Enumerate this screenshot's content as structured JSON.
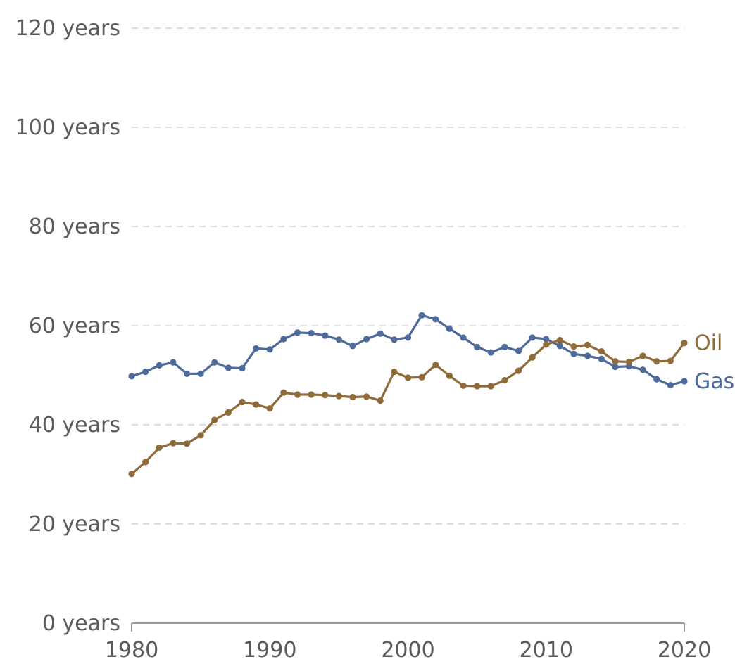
{
  "chart_data": {
    "type": "line",
    "title": "",
    "xlabel": "",
    "ylabel": "",
    "xlim": [
      1980,
      2020
    ],
    "ylim": [
      0,
      120
    ],
    "x_ticks": [
      1980,
      1990,
      2000,
      2010,
      2020
    ],
    "x_tick_labels": [
      "1980",
      "1990",
      "2000",
      "2010",
      "2020"
    ],
    "y_ticks": [
      0,
      20,
      40,
      60,
      80,
      100,
      120
    ],
    "y_tick_labels": [
      "0 years",
      "20 years",
      "40 years",
      "60 years",
      "80 years",
      "100 years",
      "120 years"
    ],
    "grid": true,
    "x": [
      1980,
      1981,
      1982,
      1983,
      1984,
      1985,
      1986,
      1987,
      1988,
      1989,
      1990,
      1991,
      1992,
      1993,
      1994,
      1995,
      1996,
      1997,
      1998,
      1999,
      2000,
      2001,
      2002,
      2003,
      2004,
      2005,
      2006,
      2007,
      2008,
      2009,
      2010,
      2011,
      2012,
      2013,
      2014,
      2015,
      2016,
      2017,
      2018,
      2019,
      2020
    ],
    "series": [
      {
        "name": "Gas",
        "color": "#4e6a9b",
        "values": [
          49.8,
          50.7,
          52.0,
          52.6,
          50.3,
          50.3,
          52.6,
          51.5,
          51.4,
          55.4,
          55.2,
          57.3,
          58.6,
          58.5,
          58.0,
          57.2,
          55.9,
          57.3,
          58.4,
          57.2,
          57.6,
          62.1,
          61.3,
          59.4,
          57.6,
          55.7,
          54.6,
          55.7,
          54.9,
          57.6,
          57.3,
          55.9,
          54.3,
          53.9,
          53.3,
          51.7,
          51.8,
          51.1,
          49.2,
          48.0,
          48.8
        ]
      },
      {
        "name": "Oil",
        "color": "#8f6b3a",
        "values": [
          30.1,
          32.5,
          35.4,
          36.3,
          36.2,
          37.9,
          41.0,
          42.5,
          44.6,
          44.1,
          43.3,
          46.5,
          46.1,
          46.1,
          46.0,
          45.8,
          45.6,
          45.7,
          44.9,
          50.7,
          49.5,
          49.6,
          52.1,
          49.9,
          47.9,
          47.8,
          47.8,
          49.0,
          50.9,
          53.6,
          56.2,
          57.1,
          55.8,
          56.1,
          54.8,
          52.8,
          52.7,
          53.9,
          52.8,
          52.9,
          56.5
        ]
      }
    ]
  }
}
